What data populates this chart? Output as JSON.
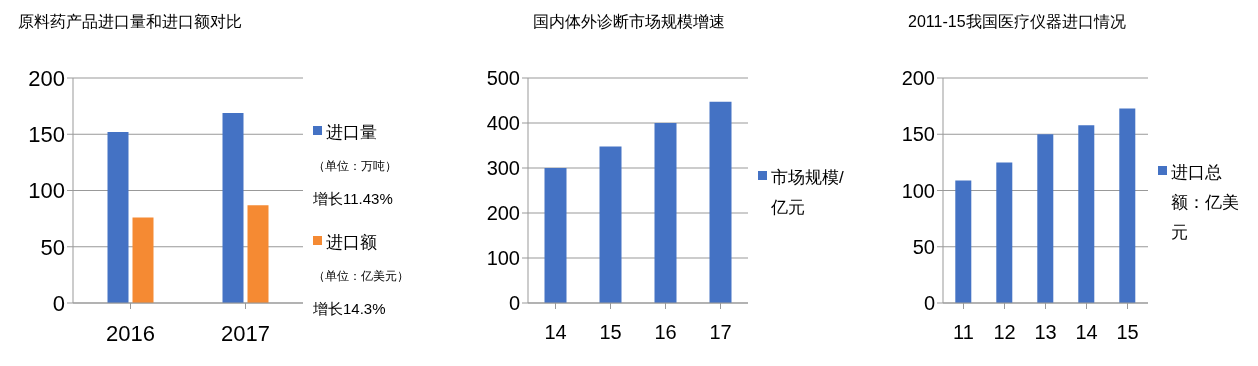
{
  "chart_data": [
    {
      "type": "bar",
      "title": "原料药产品进口量和进口额对比",
      "categories": [
        "2016",
        "2017"
      ],
      "series": [
        {
          "name": "进口量",
          "color": "#4472c4",
          "values": [
            152,
            169
          ]
        },
        {
          "name": "进口额",
          "color": "#f58a33",
          "values": [
            76,
            87
          ]
        }
      ],
      "ylim": [
        0,
        200
      ],
      "yticks": [
        0,
        50,
        100,
        150,
        200
      ],
      "grid": "y",
      "legend": "right",
      "annotations": [
        "（单位：万吨）",
        "增长11.43%",
        "（单位：亿美元）",
        "增长14.3%"
      ]
    },
    {
      "type": "bar",
      "title": "国内体外诊断市场规模增速",
      "categories": [
        "14",
        "15",
        "16",
        "17"
      ],
      "series": [
        {
          "name": "市场规模/亿元",
          "color": "#4472c4",
          "values": [
            300,
            348,
            400,
            447
          ]
        }
      ],
      "ylim": [
        0,
        500
      ],
      "yticks": [
        0,
        100,
        200,
        300,
        400,
        500
      ],
      "grid": "y",
      "legend": "right"
    },
    {
      "type": "bar",
      "title": "2011-15我国医疗仪器进口情况",
      "categories": [
        "11",
        "12",
        "13",
        "14",
        "15"
      ],
      "series": [
        {
          "name": "进口总额：亿美元",
          "color": "#4472c4",
          "values": [
            109,
            125,
            150,
            158,
            173
          ]
        }
      ],
      "ylim": [
        0,
        200
      ],
      "yticks": [
        0,
        50,
        100,
        150,
        200
      ],
      "grid": "y",
      "legend": "right"
    }
  ]
}
